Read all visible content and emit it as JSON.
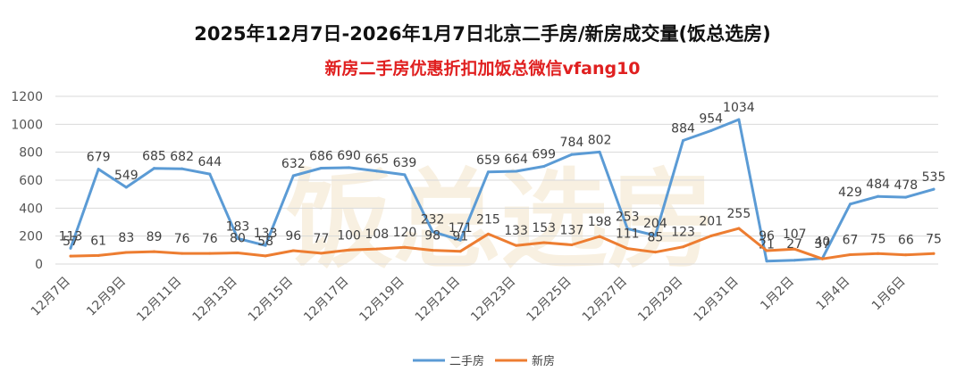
{
  "chart_data": {
    "type": "line",
    "title": "2025年12月7日-2026年1月7日北京二手房/新房成交量(饭总选房)",
    "subtitle": "新房二手房优惠折扣加饭总微信vfang10",
    "watermark": "饭总选房",
    "x": [
      "12月7日",
      "12月8日",
      "12月9日",
      "12月10日",
      "12月11日",
      "12月12日",
      "12月13日",
      "12月14日",
      "12月15日",
      "12月16日",
      "12月17日",
      "12月18日",
      "12月19日",
      "12月20日",
      "12月21日",
      "12月22日",
      "12月23日",
      "12月24日",
      "12月25日",
      "12月26日",
      "12月27日",
      "12月28日",
      "12月29日",
      "12月30日",
      "12月31日",
      "1月1日",
      "1月2日",
      "1月3日",
      "1月4日",
      "1月5日",
      "1月6日",
      "1月7日"
    ],
    "x_tick_labels": [
      "12月7日",
      "12月9日",
      "12月11日",
      "12月13日",
      "12月15日",
      "12月17日",
      "12月19日",
      "12月21日",
      "12月23日",
      "12月25日",
      "12月27日",
      "12月29日",
      "12月31日",
      "1月2日",
      "1月4日",
      "1月6日"
    ],
    "series": [
      {
        "name": "二手房",
        "color": "#5b9bd5",
        "values": [
          113,
          679,
          549,
          685,
          682,
          644,
          183,
          133,
          632,
          686,
          690,
          665,
          639,
          232,
          171,
          659,
          664,
          699,
          784,
          802,
          253,
          204,
          884,
          954,
          1034,
          21,
          27,
          40,
          429,
          484,
          478,
          535
        ]
      },
      {
        "name": "新房",
        "color": "#ed7d31",
        "values": [
          57,
          61,
          83,
          89,
          76,
          76,
          80,
          58,
          96,
          77,
          100,
          108,
          120,
          98,
          91,
          215,
          133,
          153,
          137,
          198,
          111,
          85,
          123,
          201,
          255,
          96,
          107,
          37,
          67,
          75,
          66,
          75
        ]
      }
    ],
    "ylim": [
      0,
      1200
    ],
    "yticks": [
      0,
      200,
      400,
      600,
      800,
      1000,
      1200
    ],
    "grid": true,
    "legend": "bottom"
  }
}
